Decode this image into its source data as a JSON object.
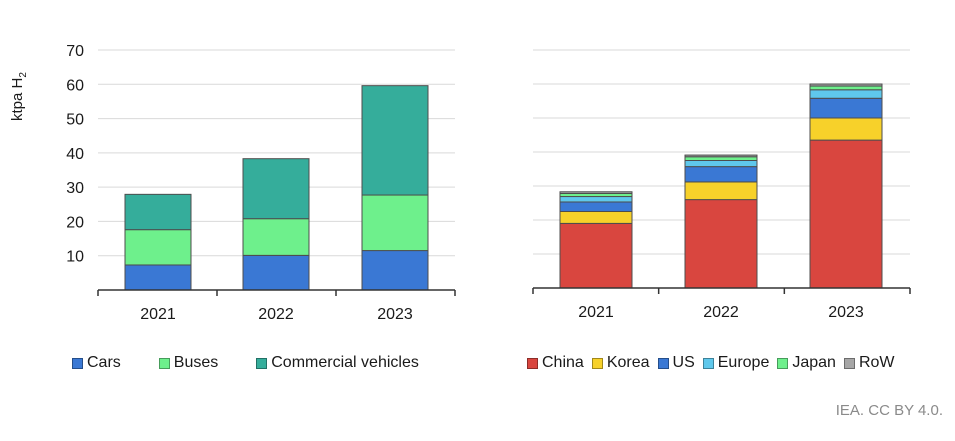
{
  "chart_data": [
    {
      "type": "bar",
      "stacked": true,
      "ylabel_parts": [
        "ktpa H",
        "2"
      ],
      "ylim": [
        0,
        70
      ],
      "yticks": [
        10,
        20,
        30,
        40,
        50,
        60,
        70
      ],
      "grid": true,
      "legend_placement": "bottom",
      "categories": [
        "2021",
        "2022",
        "2023"
      ],
      "series": [
        {
          "name": "Cars",
          "color": "#3a78d4",
          "values": [
            7.3,
            10.1,
            11.5
          ]
        },
        {
          "name": "Buses",
          "color": "#6ef08c",
          "values": [
            10.3,
            10.7,
            16.2
          ]
        },
        {
          "name": "Commercial vehicles",
          "color": "#35ad9b",
          "values": [
            10.3,
            17.5,
            31.9
          ]
        }
      ]
    },
    {
      "type": "bar",
      "stacked": true,
      "ylim": [
        0,
        70
      ],
      "grid": true,
      "legend_placement": "bottom",
      "categories": [
        "2021",
        "2022",
        "2023"
      ],
      "series": [
        {
          "name": "China",
          "color": "#d9463f",
          "values": [
            19.0,
            26.0,
            43.5
          ]
        },
        {
          "name": "Korea",
          "color": "#f7d12a",
          "values": [
            3.5,
            5.2,
            6.5
          ]
        },
        {
          "name": "US",
          "color": "#3a78d4",
          "values": [
            2.8,
            4.5,
            5.8
          ]
        },
        {
          "name": "Europe",
          "color": "#5fc8ec",
          "values": [
            1.6,
            1.8,
            2.5
          ]
        },
        {
          "name": "Japan",
          "color": "#6ef08c",
          "values": [
            0.9,
            1.1,
            1.1
          ]
        },
        {
          "name": "RoW",
          "color": "#a6a6a6",
          "values": [
            0.5,
            0.5,
            0.6
          ]
        }
      ]
    }
  ],
  "credit": "IEA. CC BY 4.0."
}
